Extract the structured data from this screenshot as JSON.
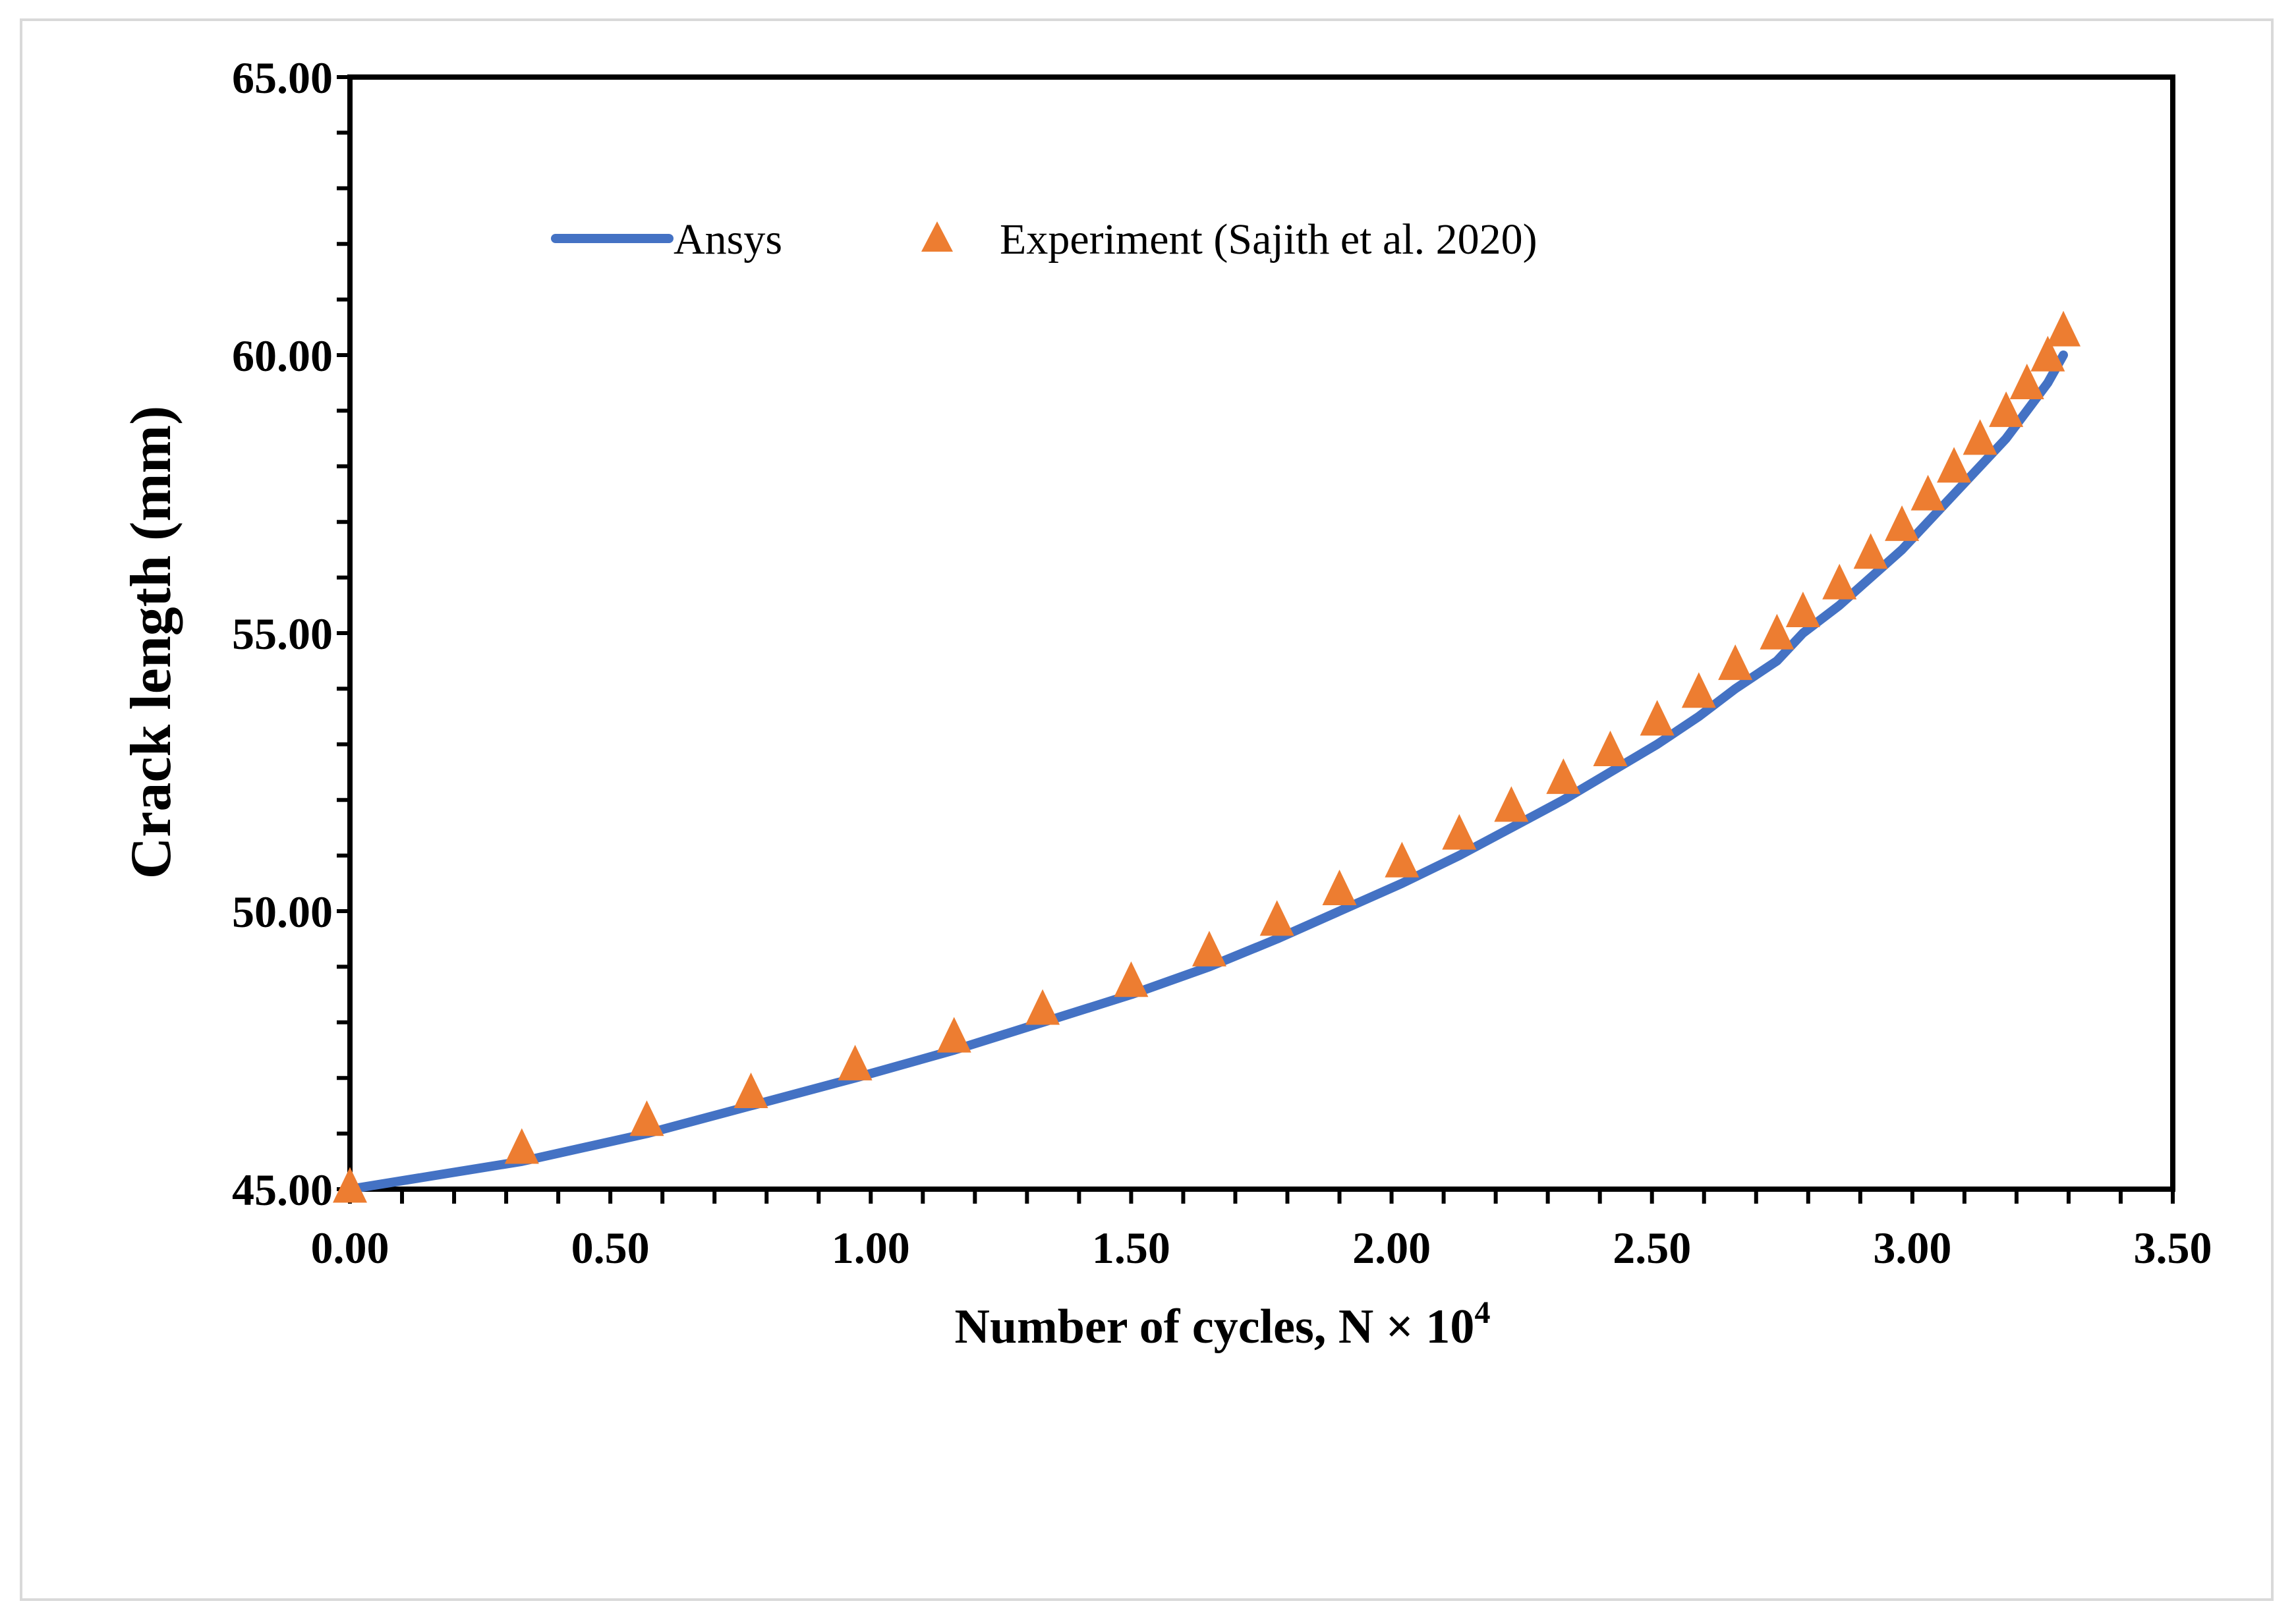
{
  "chart_data": {
    "type": "line",
    "title": "",
    "xlabel": "Number of cycles, N × 10",
    "xlabel_exponent": "4",
    "ylabel": "Crack length (mm)",
    "xlim": [
      0,
      3.5
    ],
    "ylim": [
      45,
      65
    ],
    "x_ticks": [
      "0.00",
      "0.50",
      "1.00",
      "1.50",
      "2.00",
      "2.50",
      "3.00",
      "3.50"
    ],
    "y_ticks": [
      "45.00",
      "50.00",
      "55.00",
      "60.00",
      "65.00"
    ],
    "x_minor_step": 0.1,
    "y_minor_step": 1,
    "grid": false,
    "legend_position": "top",
    "series": [
      {
        "name": "Ansys",
        "kind": "line",
        "color": "#4472C4",
        "x": [
          0,
          0.33,
          0.57,
          0.77,
          0.97,
          1.16,
          1.33,
          1.5,
          1.65,
          1.78,
          1.9,
          2.02,
          2.13,
          2.23,
          2.33,
          2.42,
          2.51,
          2.59,
          2.66,
          2.74,
          2.79,
          2.86,
          2.92,
          2.98,
          3.03,
          3.08,
          3.13,
          3.18,
          3.22,
          3.26,
          3.29
        ],
        "y": [
          45.0,
          45.5,
          46.0,
          46.5,
          47.0,
          47.5,
          48.0,
          48.5,
          49.0,
          49.5,
          50.0,
          50.5,
          51.0,
          51.5,
          52.0,
          52.5,
          53.0,
          53.5,
          54.0,
          54.5,
          55.0,
          55.5,
          56.0,
          56.5,
          57.0,
          57.5,
          58.0,
          58.5,
          59.0,
          59.5,
          60.0
        ]
      },
      {
        "name": "Experiment (Sajith et al. 2020)",
        "kind": "scatter",
        "marker": "triangle",
        "color": "#ED7D31",
        "x": [
          0,
          0.33,
          0.57,
          0.77,
          0.97,
          1.16,
          1.33,
          1.5,
          1.65,
          1.78,
          1.9,
          2.02,
          2.13,
          2.23,
          2.33,
          2.42,
          2.51,
          2.59,
          2.66,
          2.74,
          2.79,
          2.86,
          2.92,
          2.98,
          3.03,
          3.08,
          3.13,
          3.18,
          3.22,
          3.26,
          3.29
        ],
        "y": [
          45.0,
          45.7,
          46.2,
          46.7,
          47.2,
          47.7,
          48.2,
          48.7,
          49.25,
          49.8,
          50.35,
          50.85,
          51.35,
          51.85,
          52.35,
          52.85,
          53.4,
          53.9,
          54.4,
          54.95,
          55.35,
          55.85,
          56.4,
          56.9,
          57.45,
          57.95,
          58.45,
          58.95,
          59.45,
          59.95,
          60.4
        ]
      }
    ]
  }
}
